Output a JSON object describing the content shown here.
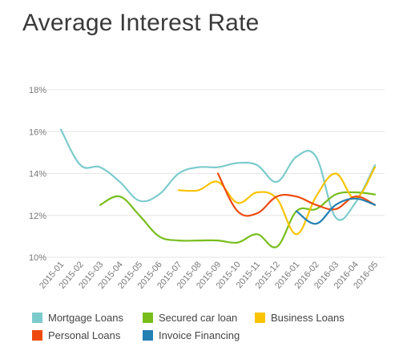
{
  "chart_data": {
    "type": "line",
    "title": "Average Interest Rate",
    "xlabel": "",
    "ylabel": "",
    "categories": [
      "2015-01",
      "2015-02",
      "2015-03",
      "2015-04",
      "2015-05",
      "2015-06",
      "2015-07",
      "2015-08",
      "2015-09",
      "2015-10",
      "2015-11",
      "2015-12",
      "2016-01",
      "2016-02",
      "2016-03",
      "2016-04",
      "2016-05"
    ],
    "ylim": [
      10,
      18
    ],
    "yticks": [
      "10%",
      "12%",
      "14%",
      "16%",
      "18%"
    ],
    "ytick_values": [
      10,
      12,
      14,
      16,
      18
    ],
    "grid": "horizontal",
    "legend_position": "bottom",
    "series": [
      {
        "name": "Mortgage Loans",
        "color": "#7ccbcc",
        "values": [
          16.1,
          14.4,
          14.3,
          13.6,
          12.7,
          13.0,
          14.0,
          14.3,
          14.3,
          14.5,
          14.4,
          13.6,
          14.8,
          14.8,
          11.9,
          12.6,
          14.4
        ]
      },
      {
        "name": "Secured car loan",
        "color": "#77be1c",
        "values": [
          null,
          null,
          12.5,
          12.9,
          12.0,
          11.0,
          10.8,
          10.8,
          10.8,
          10.7,
          11.1,
          10.5,
          12.2,
          12.3,
          13.0,
          13.1,
          13.0
        ]
      },
      {
        "name": "Business Loans",
        "color": "#f9c300",
        "values": [
          null,
          null,
          null,
          null,
          null,
          null,
          13.2,
          13.2,
          13.6,
          12.6,
          13.1,
          12.8,
          11.1,
          12.9,
          14.0,
          12.8,
          14.3
        ]
      },
      {
        "name": "Personal Loans",
        "color": "#ee4b0e",
        "values": [
          null,
          null,
          null,
          null,
          null,
          null,
          null,
          null,
          14.0,
          12.2,
          12.1,
          12.9,
          12.9,
          12.5,
          12.3,
          12.9,
          12.5
        ]
      },
      {
        "name": "Invoice Financing",
        "color": "#2280b3",
        "values": [
          null,
          null,
          null,
          null,
          null,
          null,
          null,
          null,
          null,
          null,
          null,
          null,
          12.2,
          11.6,
          12.5,
          12.8,
          12.5
        ]
      }
    ]
  }
}
